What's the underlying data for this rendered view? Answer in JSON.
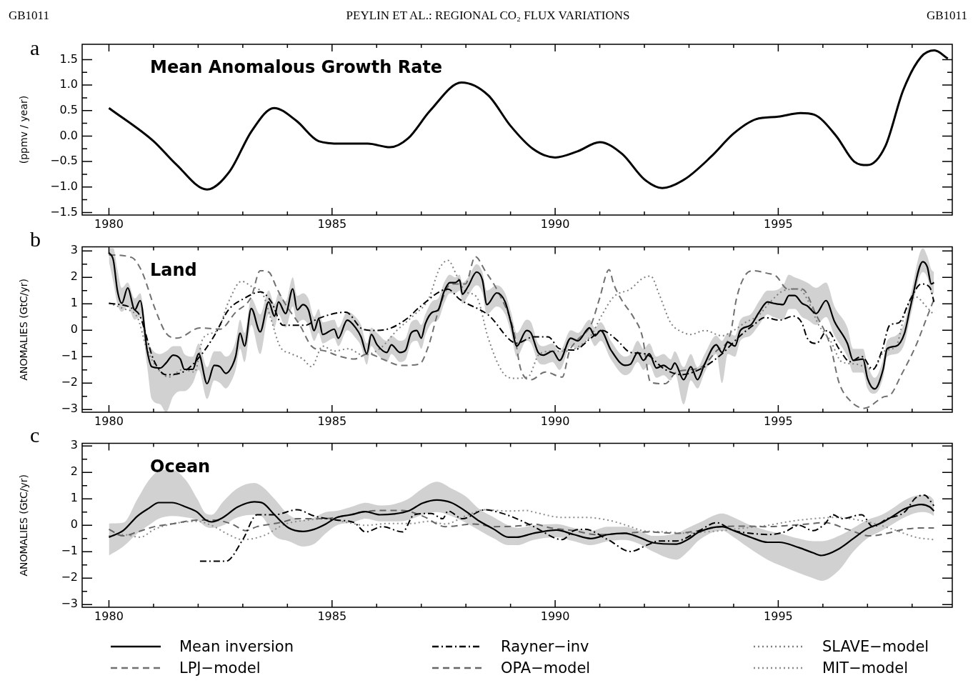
{
  "chart_data": [
    {
      "type": "line",
      "title": "Mean Anomalous Growth Rate",
      "ylabel": "(ppmv / year)",
      "annotations": [
        "GB1011",
        "PEYLIN ET AL.: REGIONAL CO₂ FLUX VARIATIONS",
        "GB1011",
        "a"
      ],
      "xlim": [
        1979.4,
        1998.9
      ],
      "ylim": [
        -1.55,
        1.8
      ],
      "xticks": [
        1980,
        {
          "value": 1981,
          "label": null
        },
        {
          "value": 1982,
          "label": null
        },
        {
          "value": 1983,
          "label": null
        },
        {
          "value": 1984,
          "label": null
        },
        1985,
        {
          "value": 1986,
          "label": null
        },
        {
          "value": 1987,
          "label": null
        },
        {
          "value": 1988,
          "label": null
        },
        {
          "value": 1989,
          "label": null
        },
        1990,
        {
          "value": 1991,
          "label": null
        },
        {
          "value": 1992,
          "label": null
        },
        {
          "value": 1993,
          "label": null
        },
        {
          "value": 1994,
          "label": null
        },
        1995,
        {
          "value": 1996,
          "label": null
        },
        {
          "value": 1997,
          "label": null
        },
        {
          "value": 1998,
          "label": null
        }
      ],
      "yticks": [
        {
          "value": -1.5,
          "label": "−1.5"
        },
        {
          "value": -1.25,
          "label": null
        },
        {
          "value": -1,
          "label": "−1.0"
        },
        {
          "value": -0.75,
          "label": null
        },
        {
          "value": -0.5,
          "label": "−0.5"
        },
        {
          "value": -0.25,
          "label": null
        },
        {
          "value": 0,
          "label": "0.0"
        },
        {
          "value": 0.25,
          "label": null
        },
        {
          "value": 0.5,
          "label": "0.5"
        },
        {
          "value": 0.75,
          "label": null
        },
        {
          "value": 1,
          "label": "1.0"
        },
        {
          "value": 1.25,
          "label": null
        },
        {
          "value": 1.5,
          "label": "1.5"
        }
      ],
      "line_style": "solid",
      "series": [
        {
          "color": "#000000",
          "x": [
            1980,
            1981,
            1981.5,
            1982.2,
            1982.7,
            1983.2,
            1983.7,
            1984.2,
            1984.7,
            1985.2,
            1985.8,
            1986.3,
            1986.7,
            1987.2,
            1987.9,
            1988.5,
            1989,
            1989.5,
            1990,
            1990.5,
            1991,
            1991.5,
            1992,
            1992.4,
            1992.9,
            1993.5,
            1994,
            1994.5,
            1995,
            1995.5,
            1995.8,
            1996.3,
            1996.7,
            1997,
            1997.4,
            1997.8,
            1998.2,
            1998.5,
            1998.8
          ],
          "values": [
            0.55,
            -0.1,
            -0.55,
            -1.05,
            -0.7,
            0.1,
            0.55,
            0.3,
            -0.1,
            -0.15,
            -0.15,
            -0.22,
            -0.05,
            0.5,
            1.05,
            0.8,
            0.2,
            -0.25,
            -0.42,
            -0.3,
            -0.12,
            -0.35,
            -0.85,
            -1.02,
            -0.85,
            -0.4,
            0.05,
            0.33,
            0.38,
            0.45,
            0.42,
            0,
            -0.5,
            -0.57,
            -0.2,
            0.9,
            1.55,
            1.68,
            1.52
          ]
        }
      ]
    },
    {
      "type": "line",
      "title": "Land",
      "ylabel": "ANOMALIES (GtC/yr)",
      "annotations": [
        "b"
      ],
      "xlim": [
        1979.4,
        1998.9
      ],
      "ylim": [
        -3.1,
        3.15
      ],
      "xticks": [
        1980,
        {
          "value": 1981,
          "label": null
        },
        {
          "value": 1982,
          "label": null
        },
        {
          "value": 1983,
          "label": null
        },
        {
          "value": 1984,
          "label": null
        },
        1985,
        {
          "value": 1986,
          "label": null
        },
        {
          "value": 1987,
          "label": null
        },
        {
          "value": 1988,
          "label": null
        },
        {
          "value": 1989,
          "label": null
        },
        1990,
        {
          "value": 1991,
          "label": null
        },
        {
          "value": 1992,
          "label": null
        },
        {
          "value": 1993,
          "label": null
        },
        {
          "value": 1994,
          "label": null
        },
        1995,
        {
          "value": 1996,
          "label": null
        },
        {
          "value": 1997,
          "label": null
        },
        {
          "value": 1998,
          "label": null
        }
      ],
      "yticks": [
        {
          "value": -3,
          "label": "−3"
        },
        {
          "value": -2.5,
          "label": null
        },
        {
          "value": -2,
          "label": "−2"
        },
        {
          "value": -1.5,
          "label": null
        },
        {
          "value": -1,
          "label": "−1"
        },
        {
          "value": -0.5,
          "label": null
        },
        0,
        {
          "value": 0.5,
          "label": null
        },
        1,
        {
          "value": 1.5,
          "label": null
        },
        2,
        {
          "value": 2.5,
          "label": null
        },
        3
      ],
      "legend": "bottom",
      "line_style": "solid",
      "series": [
        {
          "name": "Mean inversion",
          "color": "#000000",
          "x": [
            1980,
            1980.1,
            1980.19,
            1980.29,
            1980.42,
            1980.58,
            1980.7,
            1980.86,
            1980.96,
            1981.15,
            1981.28,
            1981.44,
            1981.6,
            1981.69,
            1981.88,
            1982.01,
            1982.2,
            1982.36,
            1982.49,
            1982.62,
            1982.72,
            1982.84,
            1982.94,
            1983.04,
            1983.19,
            1983.39,
            1983.58,
            1983.71,
            1983.8,
            1983.96,
            1984.12,
            1984.22,
            1984.35,
            1984.47,
            1984.6,
            1984.7,
            1984.79,
            1985.05,
            1985.14,
            1985.34,
            1985.53,
            1985.65,
            1985.78,
            1985.88,
            1986.01,
            1986.23,
            1986.33,
            1986.52,
            1986.65,
            1986.77,
            1986.9,
            1987,
            1987.09,
            1987.25,
            1987.38,
            1987.51,
            1987.64,
            1987.76,
            1987.86,
            1987.92,
            1988.05,
            1988.24,
            1988.37,
            1988.47,
            1988.69,
            1988.88,
            1989.01,
            1989.14,
            1989.36,
            1989.46,
            1989.62,
            1989.74,
            1989.94,
            1990.1,
            1990.35,
            1990.51,
            1990.77,
            1990.89,
            1991.02,
            1991.25,
            1991.57,
            1991.69,
            1991.85,
            1991.98,
            1992.11,
            1992.27,
            1992.43,
            1992.59,
            1992.68,
            1992.88,
            1993.04,
            1993.19,
            1993.35,
            1993.61,
            1993.74,
            1993.87,
            1994.03,
            1994.15,
            1994.38,
            1994.57,
            1994.76,
            1994.89,
            1995.11,
            1995.24,
            1995.37,
            1995.53,
            1995.65,
            1995.85,
            1996.07,
            1996.26,
            1996.55,
            1996.68,
            1996.9,
            1997,
            1997.16,
            1997.35,
            1997.44,
            1997.64,
            1997.83,
            1997.96,
            1998.24,
            1998.34,
            1998.43,
            1998.49
          ],
          "values": [
            2.93,
            2.64,
            1.5,
            1.02,
            1.6,
            0.77,
            1.12,
            -0.8,
            -1.38,
            -1.43,
            -1.24,
            -0.94,
            -1.09,
            -1.48,
            -1.48,
            -0.89,
            -2.02,
            -1.33,
            -1.38,
            -1.63,
            -1.48,
            -0.99,
            -0.11,
            -0.6,
            0.82,
            -0.06,
            1.07,
            0.53,
            1.07,
            0.63,
            1.56,
            0.77,
            0.97,
            0.77,
            -0.01,
            0.43,
            -0.16,
            0.04,
            -0.3,
            0.38,
            0.09,
            -0.25,
            -0.89,
            -0.16,
            -0.55,
            -0.84,
            -0.55,
            -0.84,
            -0.75,
            -0.11,
            -0.01,
            -0.3,
            0.24,
            0.68,
            0.77,
            1.46,
            1.8,
            1.8,
            1.9,
            1.36,
            1.66,
            2.2,
            1.9,
            0.97,
            1.41,
            1.07,
            0.28,
            -0.6,
            -0.01,
            -0.11,
            -0.84,
            -0.94,
            -0.79,
            -1.14,
            -0.3,
            -0.4,
            0.09,
            -0.21,
            -0.01,
            -0.75,
            -1.33,
            -1.28,
            -0.84,
            -1.14,
            -0.89,
            -1.43,
            -1.33,
            -1.48,
            -1.24,
            -1.87,
            -1.38,
            -1.87,
            -1.28,
            -0.55,
            -0.84,
            -0.45,
            -0.6,
            -0.01,
            0.19,
            0.68,
            1.07,
            1.02,
            0.97,
            1.31,
            1.31,
            1.02,
            0.92,
            0.63,
            1.12,
            0.33,
            -0.5,
            -1.14,
            -1.09,
            -1.82,
            -2.22,
            -1.48,
            -0.7,
            -0.6,
            -0.11,
            0.87,
            2.59,
            2.39,
            1.75,
            1.8
          ],
          "lower": [
            2.6,
            1.8,
            1,
            0.7,
            0.9,
            0.4,
            0.5,
            -1.4,
            -2.6,
            -2.8,
            -3.1,
            -2.5,
            -2.3,
            -2.3,
            -2,
            -1.5,
            -2.6,
            -1.9,
            -2,
            -2.2,
            -2,
            -1.5,
            -0.7,
            -1.2,
            0.2,
            -0.9,
            0.6,
            0.1,
            0.6,
            0.1,
            0.9,
            0.3,
            0.4,
            0.2,
            -0.4,
            -0.1,
            -0.5,
            -0.3,
            -0.6,
            0,
            -0.3,
            -0.6,
            -1.3,
            -0.6,
            -0.9,
            -1.2,
            -0.9,
            -1.2,
            -1.1,
            -0.5,
            -0.4,
            -0.7,
            -0.2,
            0.3,
            0.4,
            1,
            1.4,
            1.4,
            1.5,
            1,
            1.3,
            1.7,
            1.4,
            0.6,
            0.9,
            0.6,
            -0.1,
            -1,
            -0.4,
            -0.5,
            -1.2,
            -1.3,
            -1.2,
            -1.5,
            -0.6,
            -0.7,
            -0.3,
            -0.6,
            -0.4,
            -1.1,
            -1.7,
            -1.6,
            -1.2,
            -1.5,
            -1.3,
            -1.8,
            -1.7,
            -1.9,
            -1.6,
            -2.8,
            -1.9,
            -2.2,
            -1.6,
            -0.9,
            -2,
            -0.9,
            -1,
            -0.4,
            -0.2,
            0.2,
            0.6,
            0.5,
            0.4,
            0.8,
            0.8,
            0.5,
            0.4,
            0.2,
            0.5,
            -0.2,
            -1,
            -1.6,
            -1.6,
            -2.2,
            -2.4,
            -1.8,
            -1,
            -0.9,
            -0.5,
            0.5,
            2.2,
            2,
            1.4,
            1.4
          ],
          "upper": [
            3.1,
            3.1,
            2.3,
            1.6,
            1.8,
            1.2,
            1.4,
            -0.3,
            -0.7,
            -0.9,
            -0.8,
            -0.6,
            -0.6,
            -0.9,
            -1,
            -0.5,
            -1.4,
            -0.8,
            -0.8,
            -1,
            -0.9,
            -0.4,
            0.4,
            -0.1,
            1.2,
            0.6,
            1.5,
            1,
            1.4,
            1.1,
            2,
            1.3,
            1.4,
            1.2,
            0.5,
            0.8,
            0.3,
            0.4,
            0.1,
            0.7,
            0.5,
            0.2,
            -0.5,
            0.1,
            -0.1,
            -0.4,
            -0.2,
            -0.4,
            -0.3,
            0.3,
            0.4,
            0.2,
            0.6,
            1.1,
            1.2,
            1.8,
            2.1,
            2,
            2.1,
            1.8,
            2,
            2.5,
            2.2,
            1.5,
            1.7,
            1.4,
            0.7,
            -0.1,
            0.4,
            0.3,
            -0.5,
            -0.6,
            -0.5,
            -0.8,
            0,
            -0.1,
            0.4,
            0.1,
            0.3,
            -0.4,
            -1,
            -0.9,
            -0.4,
            -0.7,
            -0.5,
            -1,
            -0.9,
            -1.1,
            -0.8,
            -1.4,
            -0.9,
            -1.4,
            -0.9,
            -0.2,
            -0.4,
            -0.1,
            -0.2,
            0.4,
            0.6,
            1.1,
            1.5,
            1.5,
            1.7,
            2.1,
            2,
            1.9,
            1.8,
            1.6,
            1.8,
            0.9,
            0.1,
            -0.7,
            -0.7,
            -1.3,
            -1.8,
            -1.1,
            -0.4,
            -0.2,
            0.3,
            1.3,
            3.1,
            2.8,
            2.3,
            2.2
          ]
        },
        {
          "name": "Rayner−inv",
          "color": "#000000",
          "line_style": "dashdot",
          "x": [
            1980,
            1980.64,
            1981.02,
            1981.28,
            1981.66,
            1982.04,
            1982.36,
            1982.68,
            1983.03,
            1983.4,
            1983.64,
            1983.9,
            1984.41,
            1984.67,
            1985.31,
            1985.69,
            1986.01,
            1986.33,
            1986.71,
            1986.96,
            1987.6,
            1987.86,
            1988.5,
            1989.14,
            1989.52,
            1989.84,
            1990.1,
            1990.42,
            1990.8,
            1991.05,
            1991.37,
            1991.69,
            1992.01,
            1992.46,
            1992.84,
            1993.1,
            1993.35,
            1993.74,
            1994.12,
            1994.44,
            1994.7,
            1995.02,
            1995.34,
            1995.53,
            1995.65,
            1995.85,
            1996.1,
            1996.36,
            1996.61,
            1996.87,
            1997.12,
            1997.32,
            1997.5,
            1997.7,
            1997.96,
            1998.21,
            1998.4,
            1998.49
          ],
          "values": [
            1.02,
            0.68,
            -1.19,
            -1.68,
            -1.58,
            -0.99,
            -0.21,
            0.77,
            1.2,
            1.45,
            1.07,
            0.19,
            0.19,
            0.43,
            0.68,
            0.04,
            -0.01,
            0.09,
            0.48,
            0.87,
            1.55,
            1.17,
            0.58,
            -0.49,
            -0.25,
            -0.25,
            -0.7,
            -0.75,
            -0.3,
            -0.01,
            -0.35,
            -0.84,
            -0.89,
            -1.48,
            -1.68,
            -1.58,
            -1.38,
            -0.89,
            -0.25,
            0.19,
            0.48,
            0.38,
            0.53,
            0.28,
            -0.3,
            -0.5,
            -0.01,
            -0.7,
            -1.19,
            -0.99,
            -1.48,
            -0.79,
            0.19,
            0.28,
            1.17,
            1.75,
            1.61,
            1.07
          ]
        },
        {
          "name": "SLAVE−model",
          "color": "#808080",
          "line_style": "dotted",
          "x": [
            1980,
            1980.32,
            1980.64,
            1980.83,
            1981.02,
            1981.34,
            1981.66,
            1981.92,
            1982.11,
            1982.43,
            1982.68,
            1982.97,
            1983.19,
            1983.45,
            1983.64,
            1983.83,
            1984.09,
            1984.35,
            1984.54,
            1984.79,
            1985.05,
            1985.37,
            1985.69,
            1986.07,
            1986.45,
            1986.84,
            1987.16,
            1987.41,
            1987.6,
            1987.8,
            1987.99,
            1988.24,
            1988.5,
            1988.82,
            1989.07,
            1989.39,
            1989.65,
            1989.97,
            1990.22,
            1990.54,
            1990.8,
            1991.05,
            1991.31,
            1991.69,
            1991.95,
            1992.14,
            1992.33,
            1992.59,
            1992.84,
            1993.04,
            1993.35,
            1993.74,
            1994,
            1994.25,
            1994.57,
            1994.82,
            1995.14,
            1995.46,
            1995.65,
            1995.91,
            1996.17,
            1996.42,
            1996.74,
            1997.12,
            1997.38,
            1997.64,
            1997.86,
            1998.08,
            1998.33,
            1998.49
          ],
          "values": [
            1.02,
            0.82,
            0.48,
            -0.6,
            -1.28,
            -1.77,
            -1.48,
            -1.58,
            -0.3,
            -0.01,
            1.07,
            1.85,
            1.66,
            1.36,
            0.38,
            -0.6,
            -0.89,
            -1.09,
            -1.38,
            -0.6,
            -0.79,
            -0.7,
            -0.94,
            -0.7,
            -0.01,
            0.58,
            1.17,
            2.34,
            2.64,
            2.05,
            1.46,
            1.26,
            -0.3,
            -1.58,
            -1.82,
            -1.77,
            -0.89,
            -0.79,
            -0.79,
            -0.6,
            -0.21,
            0.58,
            1.26,
            1.56,
            1.95,
            2.05,
            1.36,
            0.28,
            -0.06,
            -0.16,
            -0.01,
            -0.21,
            -0.01,
            0.28,
            0.58,
            1.07,
            1.51,
            1.56,
            1.17,
            0.19,
            -0.4,
            -1.19,
            -1.28,
            -1.48,
            -0.79,
            -0.6,
            0.77,
            1.26,
            0.87,
            0.58
          ]
        },
        {
          "name": "LPJ−model",
          "color": "#707070",
          "line_style": "dashed",
          "x": [
            1980,
            1980.51,
            1980.73,
            1981.02,
            1981.28,
            1981.53,
            1982.04,
            1982.49,
            1982.84,
            1983.19,
            1983.39,
            1983.58,
            1983.77,
            1983.96,
            1984.28,
            1984.54,
            1984.86,
            1985.18,
            1985.5,
            1985.81,
            1986.13,
            1986.55,
            1986.96,
            1987.16,
            1987.41,
            1987.67,
            1987.99,
            1988.21,
            1988.43,
            1988.75,
            1989.07,
            1989.23,
            1989.46,
            1989.78,
            1990.16,
            1990.32,
            1990.48,
            1990.8,
            1990.99,
            1991.21,
            1991.31,
            1991.5,
            1991.76,
            1991.95,
            1992.14,
            1992.46,
            1992.72,
            1993.1,
            1993.29,
            1993.61,
            1993.93,
            1994.06,
            1994.25,
            1994.44,
            1994.76,
            1994.95,
            1995.21,
            1995.53,
            1995.85,
            1996.17,
            1996.36,
            1996.61,
            1996.93,
            1997.38,
            1997.5,
            1997.76,
            1998.08,
            1998.33,
            1998.49
          ],
          "values": [
            2.85,
            2.75,
            2.25,
            0.87,
            -0.11,
            -0.3,
            0.09,
            0.04,
            0.68,
            1.26,
            2.25,
            2.2,
            1.56,
            0.97,
            0.19,
            -0.6,
            -0.79,
            -0.99,
            -1.09,
            -0.89,
            -1.09,
            -1.33,
            -1.28,
            -0.6,
            0.87,
            1.75,
            1.75,
            2.78,
            2.25,
            1.36,
            -0.01,
            -1.48,
            -1.87,
            -1.58,
            -1.77,
            -0.79,
            -0.4,
            0.19,
            1.17,
            2.29,
            1.75,
            1.12,
            0.48,
            -0.21,
            -1.97,
            -2.02,
            -1.58,
            -1.48,
            -1.38,
            -0.79,
            -0.11,
            1.17,
            2.05,
            2.25,
            2.15,
            2.05,
            1.56,
            1.56,
            0.58,
            -0.6,
            -1.97,
            -2.66,
            -2.95,
            -2.51,
            -2.46,
            -1.68,
            -0.6,
            0.48,
            1.17
          ]
        }
      ]
    },
    {
      "type": "line",
      "title": "Ocean",
      "ylabel": "ANOMALIES (GtC/yr)",
      "annotations": [
        "c"
      ],
      "xlim": [
        1979.4,
        1998.9
      ],
      "ylim": [
        -3.1,
        3.1
      ],
      "xticks": [
        1980,
        {
          "value": 1981,
          "label": null
        },
        {
          "value": 1982,
          "label": null
        },
        {
          "value": 1983,
          "label": null
        },
        {
          "value": 1984,
          "label": null
        },
        1985,
        {
          "value": 1986,
          "label": null
        },
        {
          "value": 1987,
          "label": null
        },
        {
          "value": 1988,
          "label": null
        },
        {
          "value": 1989,
          "label": null
        },
        1990,
        {
          "value": 1991,
          "label": null
        },
        {
          "value": 1992,
          "label": null
        },
        {
          "value": 1993,
          "label": null
        },
        {
          "value": 1994,
          "label": null
        },
        1995,
        {
          "value": 1996,
          "label": null
        },
        {
          "value": 1997,
          "label": null
        },
        {
          "value": 1998,
          "label": null
        }
      ],
      "yticks": [
        {
          "value": -3,
          "label": "−3"
        },
        {
          "value": -2.5,
          "label": null
        },
        {
          "value": -2,
          "label": "−2"
        },
        {
          "value": -1.5,
          "label": null
        },
        {
          "value": -1,
          "label": "−1"
        },
        {
          "value": -0.5,
          "label": null
        },
        0,
        {
          "value": 0.5,
          "label": null
        },
        1,
        {
          "value": 1.5,
          "label": null
        },
        2,
        {
          "value": 2.5,
          "label": null
        },
        3
      ],
      "legend": "bottom",
      "line_style": "solid",
      "series": [
        {
          "name": "Mean inversion",
          "color": "#000000",
          "x": [
            1980,
            1980.32,
            1980.64,
            1980.89,
            1981.12,
            1981.41,
            1981.73,
            1981.98,
            1982.17,
            1982.3,
            1982.56,
            1982.88,
            1983.26,
            1983.45,
            1983.71,
            1984.03,
            1984.35,
            1984.6,
            1984.86,
            1985.11,
            1985.43,
            1985.75,
            1986.07,
            1986.39,
            1986.71,
            1987.03,
            1987.35,
            1987.67,
            1987.99,
            1988.31,
            1988.63,
            1988.95,
            1989.14,
            1989.52,
            1990.03,
            1990.42,
            1990.8,
            1991.18,
            1991.56,
            1991.88,
            1992.2,
            1992.72,
            1992.97,
            1993.23,
            1993.74,
            1994,
            1994.38,
            1994.76,
            1995.02,
            1995.46,
            1995.78,
            1995.97,
            1996.36,
            1996.68,
            1996.99,
            1997.32,
            1997.57,
            1997.83,
            1998.21,
            1998.4,
            1998.49
          ],
          "values": [
            -0.45,
            -0.2,
            0.35,
            0.64,
            0.86,
            0.86,
            0.69,
            0.5,
            0.2,
            0.13,
            0.3,
            0.69,
            0.89,
            0.84,
            0.4,
            -0.1,
            -0.23,
            -0.15,
            0.05,
            0.3,
            0.4,
            0.52,
            0.4,
            0.43,
            0.54,
            0.84,
            0.96,
            0.86,
            0.54,
            0.15,
            -0.15,
            -0.45,
            -0.45,
            -0.3,
            -0.18,
            -0.35,
            -0.5,
            -0.35,
            -0.3,
            -0.45,
            -0.66,
            -0.71,
            -0.54,
            -0.25,
            -0.05,
            -0.2,
            -0.45,
            -0.64,
            -0.64,
            -0.84,
            -1.04,
            -1.14,
            -0.89,
            -0.5,
            -0.13,
            0.1,
            0.35,
            0.62,
            0.79,
            0.69,
            0.54
          ],
          "lower": [
            -1.14,
            -0.8,
            -0.3,
            0,
            0.25,
            0.35,
            0.3,
            0.2,
            -0.05,
            -0.1,
            0,
            0.3,
            0.4,
            0.3,
            -0.4,
            -0.6,
            -0.8,
            -0.7,
            -0.3,
            0,
            0.1,
            0.25,
            0.15,
            0.15,
            0.2,
            0.4,
            0.5,
            0.35,
            0.1,
            -0.2,
            -0.5,
            -0.75,
            -0.75,
            -0.55,
            -0.45,
            -0.6,
            -0.75,
            -0.6,
            -0.55,
            -0.7,
            -1,
            -1.3,
            -1,
            -0.55,
            -0.2,
            -0.45,
            -0.9,
            -1.3,
            -1.5,
            -1.8,
            -2,
            -2.1,
            -1.7,
            -1,
            -0.5,
            -0.2,
            0.05,
            0.3,
            0.5,
            0.45,
            0.35
          ],
          "upper": [
            0.07,
            0.1,
            1,
            1.7,
            2.05,
            2.1,
            1.7,
            1,
            0.45,
            0.4,
            0.9,
            1.4,
            1.6,
            1.45,
            1,
            0.4,
            0.2,
            0.3,
            0.5,
            0.55,
            0.7,
            0.85,
            0.75,
            0.8,
            1,
            1.4,
            1.65,
            1.4,
            1.1,
            0.6,
            0.3,
            0,
            -0.1,
            0,
            0.05,
            -0.1,
            -0.2,
            -0.05,
            -0.05,
            -0.2,
            -0.4,
            -0.3,
            -0.1,
            0.1,
            0.45,
            0.3,
            0,
            -0.2,
            -0.3,
            -0.5,
            -0.6,
            -0.6,
            -0.4,
            -0.1,
            0.2,
            0.4,
            0.65,
            0.95,
            1.15,
            1.1,
            0.95
          ]
        },
        {
          "name": "Rayner−inv",
          "color": "#000000",
          "line_style": "dashdot",
          "x": [
            1982.04,
            1982.62,
            1983,
            1983.32,
            1983.71,
            1984.22,
            1984.6,
            1985.11,
            1985.5,
            1985.75,
            1986.13,
            1986.58,
            1986.84,
            1987.22,
            1987.48,
            1987.6,
            1987.92,
            1988.43,
            1988.82,
            1989.14,
            1989.52,
            1990.16,
            1990.42,
            1990.67,
            1991.18,
            1991.69,
            1992.07,
            1992.33,
            1992.72,
            1993.23,
            1993.61,
            1994,
            1994.38,
            1994.76,
            1995.14,
            1995.46,
            1995.78,
            1996.04,
            1996.23,
            1996.42,
            1996.87,
            1997.12,
            1997.44,
            1997.83,
            1998.08,
            1998.27,
            1998.49
          ],
          "values": [
            -1.36,
            -1.36,
            -0.54,
            0.4,
            0.4,
            0.59,
            0.35,
            0.2,
            0.1,
            -0.25,
            -0.05,
            -0.25,
            0.4,
            0.45,
            0.25,
            0.54,
            0.25,
            0.59,
            0.45,
            0.25,
            -0.05,
            -0.54,
            -0.2,
            -0.15,
            -0.54,
            -0.99,
            -0.74,
            -0.59,
            -0.59,
            -0.2,
            0.1,
            -0.2,
            -0.3,
            -0.35,
            -0.25,
            0,
            -0.2,
            0.05,
            0.4,
            0.25,
            0.4,
            -0.05,
            0.25,
            0.5,
            1.04,
            1.14,
            0.74
          ]
        },
        {
          "name": "OPA−model",
          "color": "#666666",
          "line_style": "dashed",
          "x": [
            1980,
            1980.32,
            1980.64,
            1981.02,
            1981.47,
            1981.98,
            1982.36,
            1982.75,
            1983.07,
            1983.32,
            1983.83,
            1984.22,
            1984.79,
            1985.24,
            1985.75,
            1986.13,
            1986.58,
            1987.03,
            1987.54,
            1988.18,
            1988.63,
            1989.33,
            1989.52,
            1989.9,
            1990.42,
            1990.93,
            1991.56,
            1992.07,
            1992.72,
            1993.23,
            1993.74,
            1994.25,
            1994.76,
            1995.27,
            1995.65,
            1996.04,
            1996.55,
            1997.06,
            1997.44,
            1997.83,
            1998.21,
            1998.49
          ],
          "values": [
            -0.15,
            -0.4,
            -0.25,
            -0.05,
            0.07,
            0.2,
            0.2,
            0.05,
            -0.2,
            -0.05,
            0.1,
            0.25,
            0.25,
            0.35,
            0.52,
            0.56,
            0.56,
            0.35,
            -0.05,
            0.05,
            -0.05,
            0,
            0.05,
            -0.1,
            -0.2,
            -0.35,
            -0.3,
            -0.25,
            -0.3,
            -0.2,
            -0.05,
            -0.03,
            -0.05,
            0,
            0.05,
            0.1,
            -0.15,
            -0.4,
            -0.3,
            -0.15,
            -0.1,
            -0.1
          ]
        },
        {
          "name": "MIT−model",
          "color": "#8c8c8c",
          "line_style": "dotted",
          "x": [
            1980,
            1980.32,
            1980.7,
            1981.02,
            1981.47,
            1981.98,
            1982.36,
            1982.68,
            1983,
            1983.45,
            1983.96,
            1984.47,
            1984.86,
            1985.37,
            1985.75,
            1986.26,
            1986.77,
            1987.16,
            1987.54,
            1987.99,
            1988.43,
            1988.95,
            1989.36,
            1989.52,
            1990.16,
            1990.67,
            1991.18,
            1991.69,
            1991.95,
            1992.46,
            1992.97,
            1993.35,
            1993.74,
            1994.25,
            1994.76,
            1995.27,
            1995.78,
            1996.29,
            1996.8,
            1997.19,
            1997.57,
            1998.08,
            1998.49
          ],
          "values": [
            -0.4,
            -0.35,
            -0.45,
            -0.15,
            0.07,
            0.15,
            -0.05,
            -0.35,
            -0.54,
            -0.4,
            0.05,
            0.2,
            0.25,
            0.1,
            0,
            0.07,
            0.07,
            0.15,
            0.05,
            0.35,
            0.59,
            0.54,
            0.56,
            0.5,
            0.3,
            0.3,
            0.2,
            -0.05,
            -0.2,
            -0.25,
            -0.3,
            -0.25,
            -0.2,
            -0.1,
            0,
            0.15,
            0.25,
            0.3,
            0.2,
            0.05,
            -0.15,
            -0.45,
            -0.54
          ]
        }
      ]
    }
  ]
}
